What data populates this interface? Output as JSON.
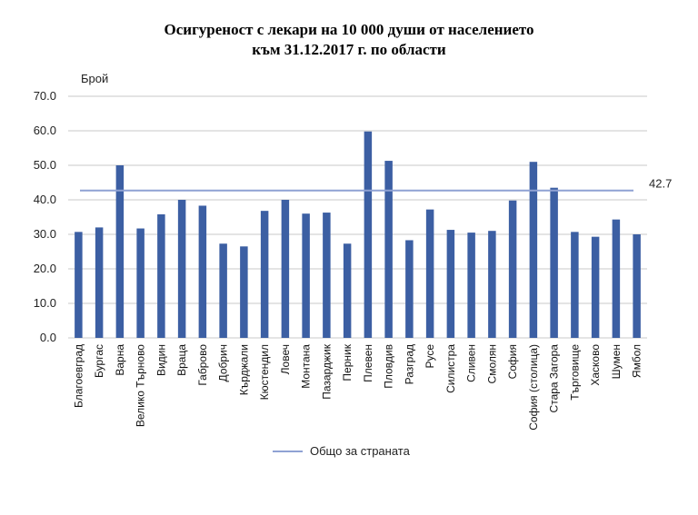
{
  "chart_data": {
    "type": "bar",
    "title": "Осигуреност с лекари на 10 000 души от населението",
    "subtitle": "към 31.12.2017 г. по области",
    "ylabel": "Брой",
    "ylim": [
      0,
      70
    ],
    "yticks": [
      "0.0",
      "10.0",
      "20.0",
      "30.0",
      "40.0",
      "50.0",
      "60.0",
      "70.0"
    ],
    "grid": true,
    "categories": [
      "Благоевград",
      "Бургас",
      "Варна",
      "Велико Търново",
      "Видин",
      "Враца",
      "Габрово",
      "Добрич",
      "Кърджали",
      "Кюстендил",
      "Ловеч",
      "Монтана",
      "Пазарджик",
      "Перник",
      "Плевен",
      "Пловдив",
      "Разград",
      "Русе",
      "Силистра",
      "Сливен",
      "Смолян",
      "София",
      "София (столица)",
      "Стара Загора",
      "Търговище",
      "Хасково",
      "Шумен",
      "Ямбол"
    ],
    "values": [
      30.7,
      32.0,
      50.0,
      31.7,
      35.8,
      40.0,
      38.3,
      27.3,
      26.5,
      36.8,
      40.0,
      36.0,
      36.3,
      27.3,
      59.8,
      51.3,
      28.3,
      37.2,
      31.3,
      30.5,
      31.0,
      39.8,
      51.0,
      43.5,
      30.7,
      29.3,
      34.3,
      30.0
    ],
    "reference_line": {
      "name": "Общо за страната",
      "value": 42.7,
      "label": "42.7"
    },
    "legend_placement": "bottom",
    "colors": {
      "bar": "#3c5fa3",
      "reference_line": "#8fa2d4",
      "grid": "#c8c8c8"
    }
  }
}
